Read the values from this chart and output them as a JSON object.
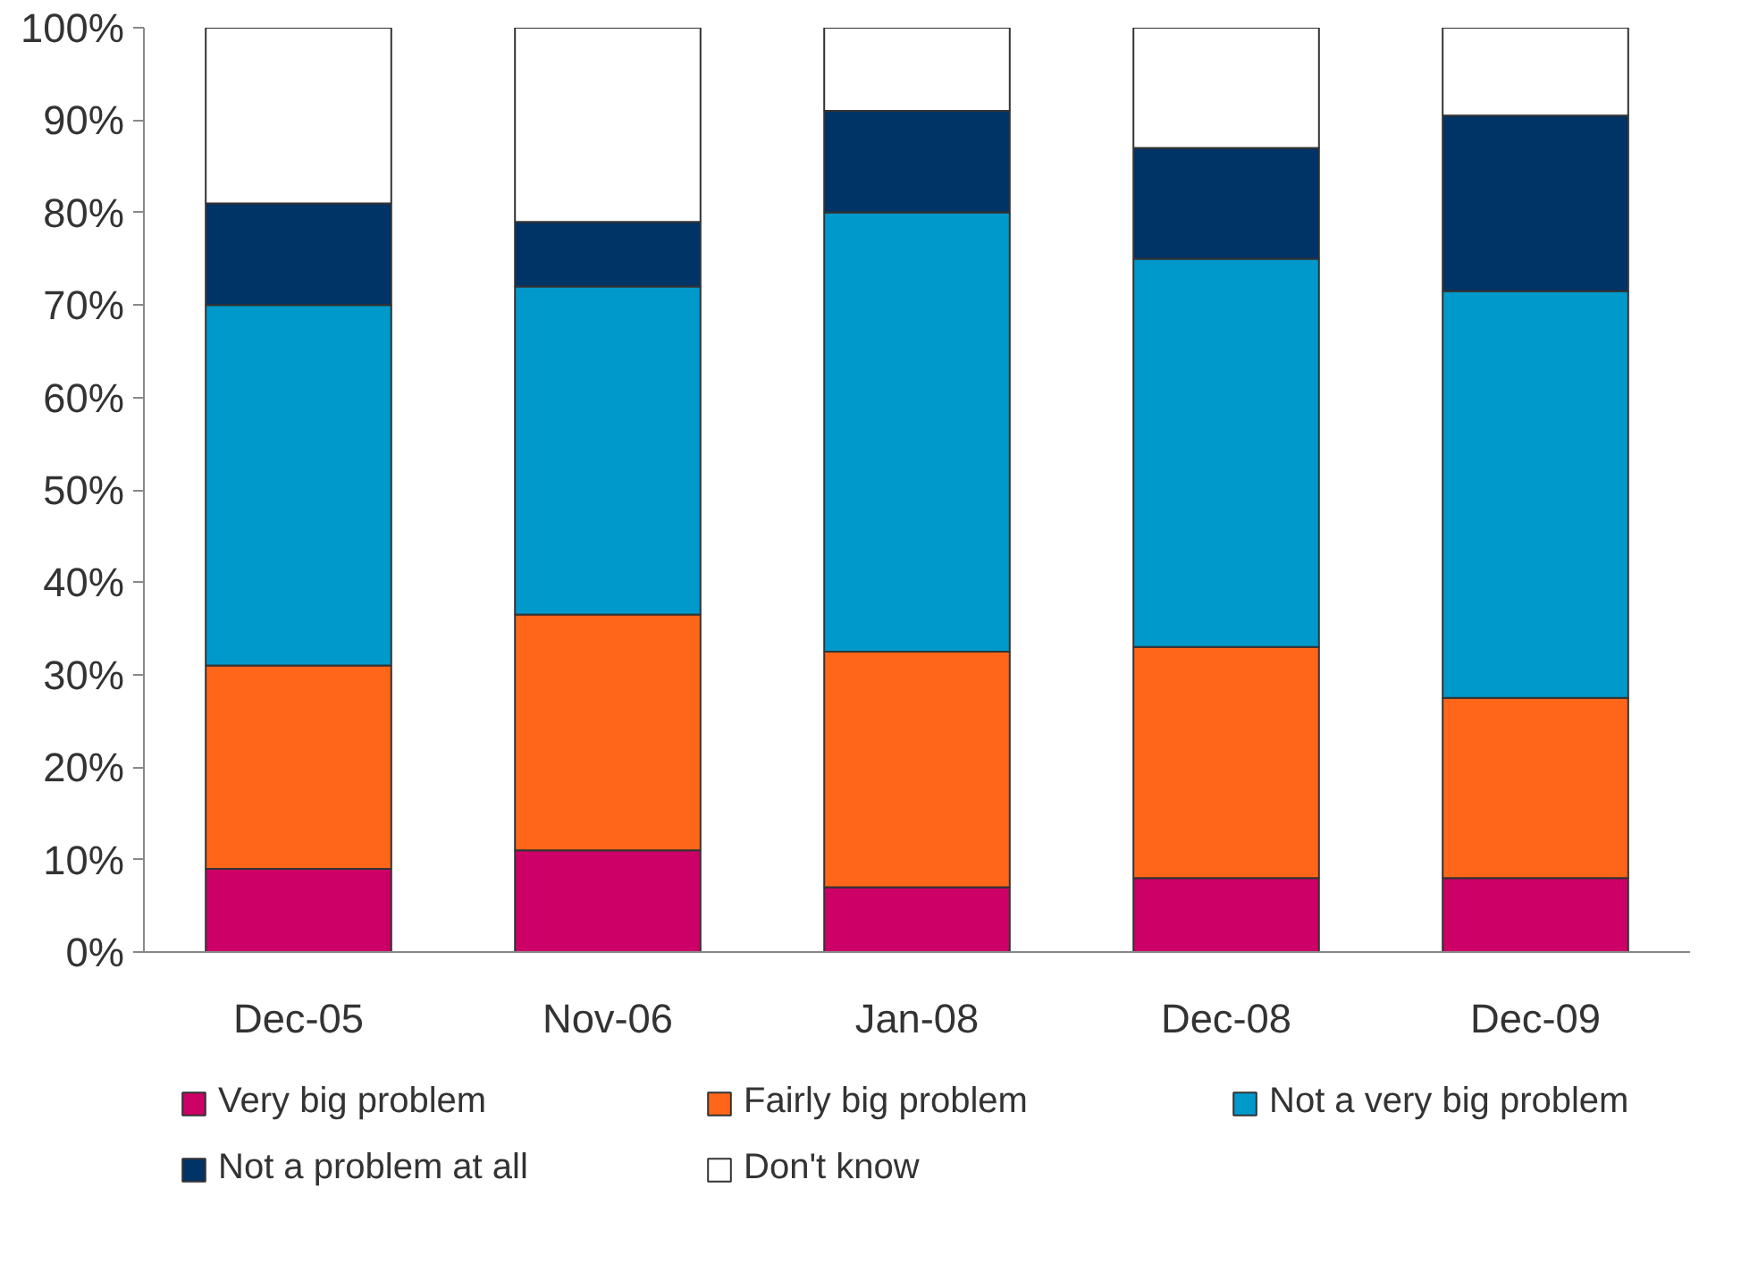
{
  "chart_data": {
    "type": "bar",
    "stacked": true,
    "categories": [
      "Dec-05",
      "Nov-06",
      "Jan-08",
      "Dec-08",
      "Dec-09"
    ],
    "series": [
      {
        "name": "Very big problem",
        "color": "#cc0066",
        "values": [
          9,
          11,
          7,
          8,
          8
        ]
      },
      {
        "name": "Fairly big problem",
        "color": "#ff6619",
        "values": [
          22,
          25.5,
          25.5,
          25,
          19.5
        ]
      },
      {
        "name": "Not a very big problem",
        "color": "#0099cc",
        "values": [
          39,
          35.5,
          47.5,
          42,
          44
        ]
      },
      {
        "name": "Not a problem at all",
        "color": "#003366",
        "values": [
          11,
          7,
          11,
          12,
          19
        ]
      },
      {
        "name": "Don't know",
        "color": "#ffffff",
        "values": [
          19,
          21,
          9,
          13,
          9.5
        ]
      }
    ],
    "ylim": [
      0,
      100
    ],
    "yticks": [
      {
        "value": 0,
        "label": "0%"
      },
      {
        "value": 10,
        "label": "10%"
      },
      {
        "value": 20,
        "label": "20%"
      },
      {
        "value": 30,
        "label": "30%"
      },
      {
        "value": 40,
        "label": "40%"
      },
      {
        "value": 50,
        "label": "50%"
      },
      {
        "value": 60,
        "label": "60%"
      },
      {
        "value": 70,
        "label": "70%"
      },
      {
        "value": 80,
        "label": "80%"
      },
      {
        "value": 90,
        "label": "90%"
      },
      {
        "value": 100,
        "label": "100%"
      }
    ],
    "grid": false,
    "legend": "bottom"
  }
}
